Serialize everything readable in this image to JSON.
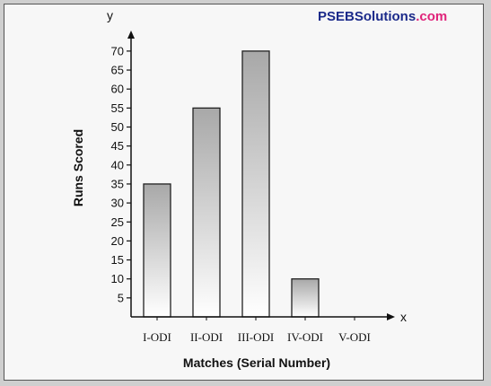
{
  "watermark": {
    "part1": "PSEB",
    "part2": "Solutions",
    "part3": ".com",
    "colors": {
      "primary": "#1b2a8a",
      "accent": "#e0237a"
    }
  },
  "chart_data": {
    "type": "bar",
    "title": "",
    "xlabel": "Matches (Serial Number)",
    "ylabel": "Runs Scored",
    "x_axis_letter": "x",
    "y_axis_letter": "y",
    "categories": [
      "I-ODI",
      "II-ODI",
      "III-ODI",
      "IV-ODI",
      "V-ODI"
    ],
    "values": [
      35,
      55,
      70,
      10,
      0
    ],
    "yticks": [
      5,
      10,
      15,
      20,
      25,
      30,
      35,
      40,
      45,
      50,
      55,
      60,
      65,
      70
    ],
    "ylim": [
      0,
      70
    ],
    "grid": false,
    "legend": "none"
  }
}
